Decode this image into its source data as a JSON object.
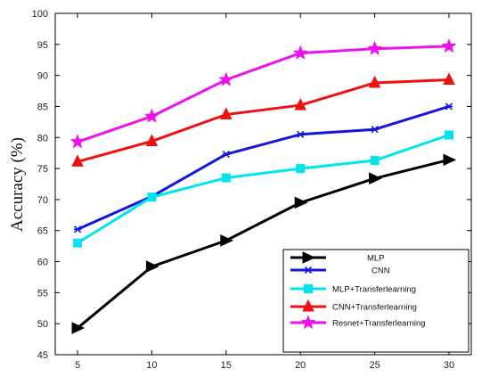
{
  "chart_data": {
    "type": "line",
    "title": "",
    "xlabel": "",
    "ylabel": "Accuracy (%)",
    "x": [
      5,
      10,
      15,
      20,
      25,
      30
    ],
    "xlim": [
      3.5,
      31.5
    ],
    "ylim": [
      45,
      100
    ],
    "xticks": [
      5,
      10,
      15,
      20,
      25,
      30
    ],
    "yticks": [
      45,
      50,
      55,
      60,
      65,
      70,
      75,
      80,
      85,
      90,
      95,
      100
    ],
    "grid": false,
    "legend_position": "bottom-right",
    "series": [
      {
        "name": "MLP",
        "color": "#000000",
        "marker": "triangle-right",
        "values": [
          49.3,
          59.2,
          63.4,
          69.5,
          73.4,
          76.4
        ]
      },
      {
        "name": "CNN",
        "color": "#1515e0",
        "marker": "asterisk",
        "values": [
          65.2,
          70.5,
          77.3,
          80.5,
          81.3,
          85.0
        ]
      },
      {
        "name": "MLP+Transferlearning",
        "color": "#00e5ee",
        "marker": "square",
        "values": [
          63.0,
          70.4,
          73.5,
          75.0,
          76.3,
          80.4
        ]
      },
      {
        "name": "CNN+Transferlearning",
        "color": "#ee1111",
        "marker": "triangle-up",
        "values": [
          76.1,
          79.4,
          83.7,
          85.2,
          88.8,
          89.3
        ]
      },
      {
        "name": "Resnet+Transferlearning",
        "color": "#ee11ee",
        "marker": "star",
        "values": [
          79.3,
          83.4,
          89.3,
          93.6,
          94.3,
          94.7
        ]
      }
    ]
  }
}
